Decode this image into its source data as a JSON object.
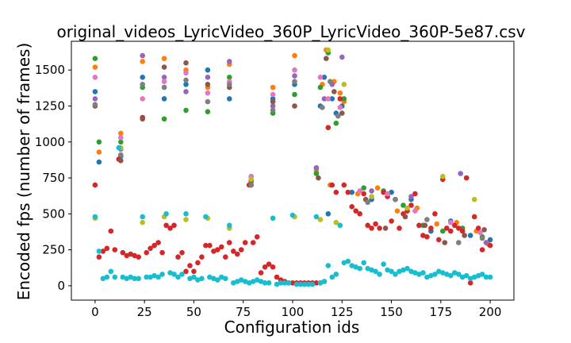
{
  "chart_data": {
    "type": "scatter",
    "title": "original_videos_LyricVideo_360P_LyricVideo_360P-5e87.csv",
    "xlabel": "Configuration ids",
    "ylabel": "Encoded fps (number of frames)",
    "xlim": [
      -12,
      212
    ],
    "ylim": [
      -100,
      1700
    ],
    "xticks": [
      0,
      25,
      50,
      75,
      100,
      125,
      150,
      175,
      200
    ],
    "yticks": [
      0,
      250,
      500,
      750,
      1000,
      1250,
      1500
    ],
    "grid": false,
    "legend": "none",
    "colors": [
      "#1f77b4",
      "#ff7f0e",
      "#2ca02c",
      "#d62728",
      "#9467bd",
      "#8c564b",
      "#e377c2",
      "#7f7f7f",
      "#bcbd22",
      "#17becf"
    ],
    "series": [
      {
        "color": "#1f77b4",
        "x": [
          0,
          2,
          13,
          24,
          35,
          46,
          57,
          68,
          79,
          90,
          101,
          112,
          114,
          116,
          118,
          120,
          122,
          125,
          130,
          140,
          150,
          160,
          170,
          180,
          190,
          200
        ],
        "y": [
          1350,
          860,
          900,
          1450,
          1300,
          1400,
          1500,
          1300,
          760,
          1300,
          1400,
          820,
          1250,
          1450,
          500,
          1300,
          1200,
          1250,
          650,
          600,
          650,
          600,
          380,
          450,
          350,
          320
        ]
      },
      {
        "color": "#ff7f0e",
        "x": [
          0,
          2,
          13,
          24,
          35,
          46,
          57,
          68,
          79,
          90,
          101,
          112,
          115,
          117,
          119,
          121,
          124,
          126,
          133,
          143,
          153,
          163,
          173,
          183,
          193,
          199
        ],
        "y": [
          1520,
          930,
          1060,
          1560,
          1580,
          1500,
          1380,
          1540,
          720,
          1380,
          1600,
          800,
          1400,
          1640,
          700,
          1420,
          1340,
          1280,
          640,
          680,
          520,
          540,
          430,
          440,
          380,
          290
        ]
      },
      {
        "color": "#2ca02c",
        "x": [
          0,
          2,
          13,
          24,
          35,
          46,
          57,
          68,
          79,
          90,
          101,
          112,
          114,
          118,
          122,
          126,
          136,
          146,
          156,
          166,
          176,
          186,
          196
        ],
        "y": [
          1580,
          1000,
          1000,
          1380,
          1160,
          1220,
          1210,
          1450,
          740,
          1200,
          1330,
          780,
          1380,
          1620,
          1130,
          1300,
          680,
          660,
          560,
          420,
          380,
          400,
          340
        ]
      },
      {
        "color": "#d62728",
        "x": [
          0,
          2,
          4,
          6,
          8,
          10,
          12,
          14,
          16,
          18,
          20,
          22,
          24,
          26,
          28,
          30,
          32,
          34,
          36,
          38,
          40,
          42,
          44,
          46,
          48,
          50,
          52,
          54,
          56,
          58,
          60,
          62,
          64,
          66,
          68,
          70,
          72,
          74,
          76,
          78,
          80,
          82,
          84,
          86,
          88,
          90,
          92,
          94,
          96,
          98,
          100,
          102,
          104,
          106,
          108,
          110,
          112,
          114,
          116,
          118,
          120,
          122,
          124,
          126,
          128,
          130,
          132,
          134,
          136,
          138,
          140,
          142,
          144,
          146,
          148,
          150,
          152,
          154,
          156,
          158,
          160,
          162,
          164,
          166,
          168,
          170,
          172,
          174,
          176,
          178,
          180,
          182,
          184,
          186,
          188,
          190,
          192,
          194,
          196,
          198,
          200
        ],
        "y": [
          700,
          200,
          240,
          260,
          380,
          250,
          880,
          230,
          210,
          220,
          210,
          200,
          1170,
          230,
          260,
          280,
          300,
          230,
          420,
          400,
          420,
          200,
          230,
          100,
          140,
          100,
          160,
          200,
          280,
          280,
          240,
          250,
          270,
          200,
          300,
          240,
          220,
          250,
          300,
          700,
          300,
          340,
          90,
          130,
          150,
          130,
          60,
          40,
          30,
          20,
          20,
          20,
          20,
          20,
          20,
          20,
          20,
          20,
          30,
          1100,
          700,
          650,
          1300,
          700,
          650,
          550,
          520,
          500,
          640,
          420,
          400,
          430,
          400,
          650,
          620,
          450,
          600,
          400,
          500,
          520,
          560,
          640,
          420,
          350,
          340,
          400,
          500,
          320,
          740,
          400,
          380,
          420,
          400,
          380,
          750,
          20,
          480,
          400,
          250,
          300,
          280
        ]
      },
      {
        "color": "#9467bd",
        "x": [
          0,
          13,
          24,
          35,
          46,
          57,
          68,
          79,
          90,
          101,
          112,
          116,
          120,
          125,
          140,
          160,
          185,
          198
        ],
        "y": [
          1300,
          950,
          1600,
          1450,
          1350,
          1450,
          1560,
          700,
          1250,
          1460,
          820,
          1300,
          1400,
          1590,
          660,
          620,
          780,
          300
        ]
      },
      {
        "color": "#8c564b",
        "x": [
          0,
          13,
          24,
          35,
          46,
          57,
          68,
          79,
          90,
          101,
          113,
          117,
          121,
          125,
          137,
          147,
          157,
          167,
          177,
          187,
          197
        ],
        "y": [
          1250,
          870,
          1160,
          1520,
          1550,
          1400,
          1380,
          730,
          1280,
          1250,
          750,
          1580,
          1350,
          1200,
          600,
          400,
          480,
          420,
          300,
          350,
          390
        ]
      },
      {
        "color": "#e377c2",
        "x": [
          0,
          13,
          24,
          35,
          46,
          57,
          68,
          79,
          90,
          101,
          114,
          118,
          124,
          134,
          148,
          162,
          180,
          195
        ],
        "y": [
          1450,
          1030,
          1300,
          1420,
          1480,
          1340,
          1420,
          760,
          1330,
          1500,
          1450,
          1300,
          1240,
          660,
          640,
          520,
          440,
          370
        ]
      },
      {
        "color": "#7f7f7f",
        "x": [
          0,
          13,
          24,
          35,
          46,
          57,
          68,
          79,
          90,
          101,
          115,
          119,
          123,
          138,
          152,
          168,
          184,
          196
        ],
        "y": [
          1260,
          910,
          1400,
          1380,
          1430,
          1280,
          1400,
          700,
          1220,
          1420,
          1240,
          1420,
          1180,
          580,
          600,
          460,
          300,
          330
        ]
      },
      {
        "color": "#bcbd22",
        "x": [
          0,
          13,
          24,
          35,
          46,
          57,
          68,
          79,
          90,
          101,
          114,
          118,
          122,
          126,
          140,
          158,
          176,
          192
        ],
        "y": [
          470,
          960,
          440,
          480,
          460,
          470,
          400,
          740,
          470,
          480,
          460,
          1640,
          440,
          1400,
          620,
          540,
          760,
          600
        ]
      },
      {
        "color": "#17becf",
        "x": [
          0,
          2,
          4,
          6,
          8,
          10,
          12,
          14,
          16,
          18,
          20,
          22,
          24,
          26,
          28,
          30,
          32,
          34,
          36,
          38,
          40,
          42,
          44,
          46,
          48,
          50,
          52,
          54,
          56,
          58,
          60,
          62,
          64,
          66,
          68,
          70,
          72,
          74,
          76,
          78,
          80,
          82,
          84,
          86,
          88,
          90,
          92,
          94,
          96,
          98,
          100,
          102,
          104,
          106,
          108,
          110,
          112,
          114,
          116,
          118,
          120,
          122,
          124,
          126,
          128,
          130,
          132,
          134,
          136,
          138,
          140,
          142,
          144,
          146,
          148,
          150,
          152,
          154,
          156,
          158,
          160,
          162,
          164,
          166,
          168,
          170,
          172,
          174,
          176,
          178,
          180,
          182,
          184,
          186,
          188,
          190,
          192,
          194,
          196,
          198,
          200
        ],
        "y": [
          480,
          240,
          50,
          60,
          100,
          60,
          960,
          60,
          50,
          60,
          50,
          50,
          480,
          60,
          60,
          70,
          60,
          80,
          500,
          90,
          80,
          60,
          80,
          500,
          50,
          60,
          40,
          50,
          480,
          60,
          50,
          40,
          60,
          50,
          420,
          20,
          30,
          40,
          30,
          20,
          30,
          40,
          30,
          20,
          20,
          470,
          10,
          20,
          20,
          20,
          490,
          10,
          10,
          10,
          10,
          10,
          480,
          20,
          30,
          140,
          60,
          80,
          420,
          160,
          170,
          140,
          130,
          120,
          160,
          120,
          110,
          100,
          80,
          150,
          110,
          100,
          80,
          100,
          110,
          120,
          100,
          90,
          80,
          90,
          60,
          70,
          80,
          100,
          90,
          80,
          70,
          90,
          80,
          60,
          70,
          50,
          60,
          70,
          80,
          60,
          60
        ]
      }
    ]
  }
}
